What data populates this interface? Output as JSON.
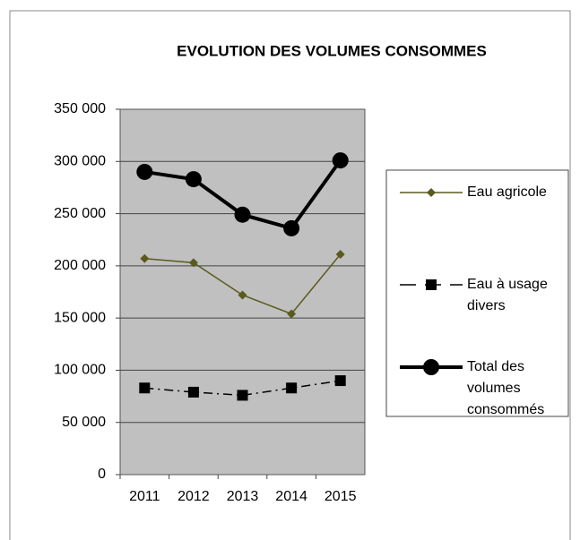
{
  "chart_data": {
    "type": "line",
    "title": "EVOLUTION DES VOLUMES CONSOMMES",
    "categories": [
      "2011",
      "2012",
      "2013",
      "2014",
      "2015"
    ],
    "series": [
      {
        "name": "Eau agricole",
        "color": "#5a5a1e",
        "marker": "diamond",
        "line_style": "solid",
        "values": [
          207000,
          203000,
          172000,
          154000,
          211000
        ]
      },
      {
        "name": "Eau à usage divers",
        "color": "#000000",
        "marker": "square",
        "line_style": "dashdot",
        "values": [
          83000,
          79000,
          76000,
          83000,
          90000
        ]
      },
      {
        "name": "Total des volumes consommés",
        "color": "#000000",
        "marker": "circle",
        "line_style": "thick",
        "values": [
          290000,
          283000,
          249000,
          236000,
          301000
        ]
      }
    ],
    "ylim": [
      0,
      350000
    ],
    "yticks": [
      0,
      {
        "value": 50000,
        "label": "50 000"
      },
      {
        "value": 100000,
        "label": "100 000"
      },
      {
        "value": 150000,
        "label": "150 000"
      },
      {
        "value": 200000,
        "label": "200 000"
      },
      {
        "value": 250000,
        "label": "250 000"
      },
      {
        "value": 300000,
        "label": "300 000"
      },
      {
        "value": 350000,
        "label": "350 000"
      }
    ],
    "grid": true,
    "legend": "right"
  }
}
